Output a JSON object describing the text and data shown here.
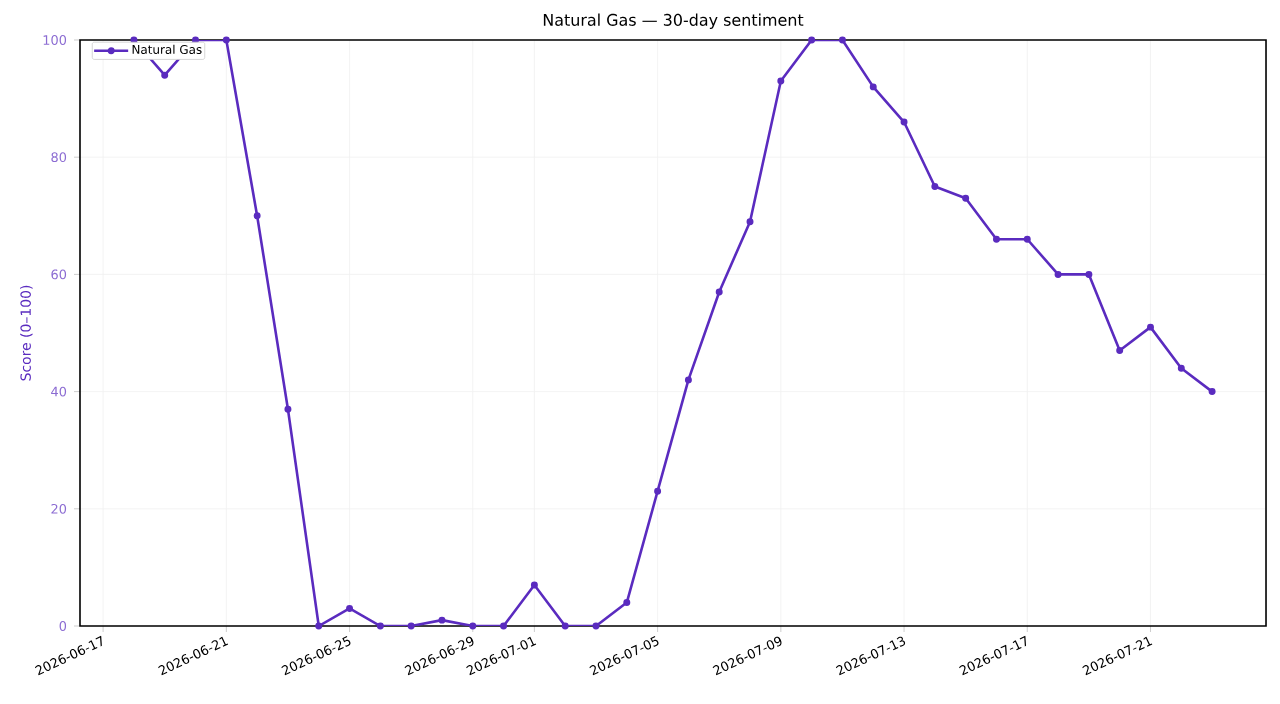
{
  "chart_data": {
    "type": "line",
    "title": "Natural Gas — 30-day sentiment",
    "ylabel": "Score (0–100)",
    "x": [
      "2026-06-18",
      "2026-06-19",
      "2026-06-20",
      "2026-06-21",
      "2026-06-22",
      "2026-06-23",
      "2026-06-24",
      "2026-06-25",
      "2026-06-26",
      "2026-06-27",
      "2026-06-28",
      "2026-06-29",
      "2026-06-30",
      "2026-07-01",
      "2026-07-02",
      "2026-07-03",
      "2026-07-04",
      "2026-07-05",
      "2026-07-06",
      "2026-07-07",
      "2026-07-08",
      "2026-07-09",
      "2026-07-10",
      "2026-07-11",
      "2026-07-12",
      "2026-07-13",
      "2026-07-14",
      "2026-07-15",
      "2026-07-16",
      "2026-07-17",
      "2026-07-18",
      "2026-07-19",
      "2026-07-20",
      "2026-07-21",
      "2026-07-22",
      "2026-07-23"
    ],
    "series": [
      {
        "name": "Natural Gas",
        "color": "#5a2bbf",
        "values": [
          100,
          94,
          100,
          100,
          70,
          37,
          0,
          3,
          0,
          0,
          1,
          0,
          0,
          7,
          0,
          0,
          4,
          23,
          42,
          57,
          69,
          93,
          100,
          100,
          92,
          86,
          75,
          73,
          66,
          66,
          60,
          60,
          47,
          51,
          44,
          40
        ]
      }
    ],
    "xlim": [
      "2026-06-16T06:00",
      "2026-07-24T18:00"
    ],
    "xticks": [
      "2026-06-17",
      "2026-06-21",
      "2026-06-25",
      "2026-06-29",
      "2026-07-01",
      "2026-07-05",
      "2026-07-09",
      "2026-07-13",
      "2026-07-17",
      "2026-07-21"
    ],
    "ylim": [
      0,
      100
    ],
    "yticks": [
      0,
      20,
      40,
      60,
      80,
      100
    ],
    "grid": true,
    "legend": "top left",
    "marker": "circle",
    "line_style": "solid"
  }
}
